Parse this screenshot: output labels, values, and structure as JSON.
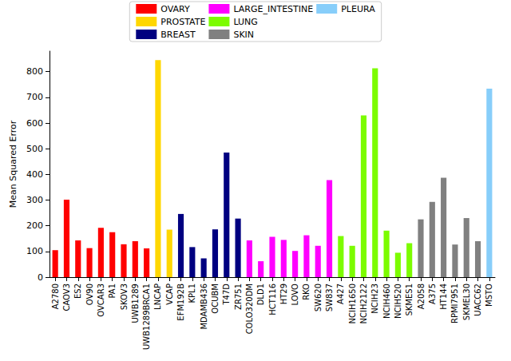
{
  "chart_data": {
    "type": "bar",
    "y_label": "Mean Squared Error",
    "categories": [
      "A2780",
      "CAOV3",
      "ES2",
      "OV90",
      "OVCAR3",
      "PA1",
      "SKOV3",
      "UWB1289",
      "UWB1289BRCA1",
      "LNCAP",
      "VCAP",
      "EFM192B",
      "KPL1",
      "MDAMB436",
      "OCUBM",
      "T47D",
      "ZR751",
      "COLO320DM",
      "DLD1",
      "HCT116",
      "HT29",
      "LOVO",
      "RKO",
      "SW620",
      "SW837",
      "A427",
      "NCIH1650",
      "NCIH2122",
      "NCIH23",
      "NCIH460",
      "NCIH520",
      "SKMES1",
      "A2058",
      "A375",
      "HT144",
      "RPMI7951",
      "SKMEL30",
      "UACC62",
      "MSTO"
    ],
    "series": [
      {
        "name": "OVARY",
        "color": "#ff0000",
        "values": [
          105,
          302,
          143,
          113,
          192,
          175,
          128,
          140,
          112,
          null,
          null,
          null,
          null,
          null,
          null,
          null,
          null,
          null,
          null,
          null,
          null,
          null,
          null,
          null,
          null,
          null,
          null,
          null,
          null,
          null,
          null,
          null,
          null,
          null,
          null,
          null,
          null,
          null,
          null
        ]
      },
      {
        "name": "PROSTATE",
        "color": "#ffd700",
        "values": [
          null,
          null,
          null,
          null,
          null,
          null,
          null,
          null,
          null,
          845,
          185,
          null,
          null,
          null,
          null,
          null,
          null,
          null,
          null,
          null,
          null,
          null,
          null,
          null,
          null,
          null,
          null,
          null,
          null,
          null,
          null,
          null,
          null,
          null,
          null,
          null,
          null,
          null,
          null
        ]
      },
      {
        "name": "BREAST",
        "color": "#000080",
        "values": [
          null,
          null,
          null,
          null,
          null,
          null,
          null,
          null,
          null,
          null,
          null,
          246,
          117,
          73,
          186,
          485,
          228,
          null,
          null,
          null,
          null,
          null,
          null,
          null,
          null,
          null,
          null,
          null,
          null,
          null,
          null,
          null,
          null,
          null,
          null,
          null,
          null,
          null,
          null
        ]
      },
      {
        "name": "LARGE_INTESTINE",
        "color": "#ff00ff",
        "values": [
          null,
          null,
          null,
          null,
          null,
          null,
          null,
          null,
          null,
          null,
          null,
          null,
          null,
          null,
          null,
          null,
          null,
          143,
          62,
          157,
          145,
          102,
          163,
          122,
          378,
          null,
          null,
          null,
          null,
          null,
          null,
          null,
          null,
          null,
          null,
          null,
          null,
          null,
          null
        ]
      },
      {
        "name": "LUNG",
        "color": "#7cfc00",
        "values": [
          null,
          null,
          null,
          null,
          null,
          null,
          null,
          null,
          null,
          null,
          null,
          null,
          null,
          null,
          null,
          null,
          null,
          null,
          null,
          null,
          null,
          null,
          null,
          null,
          null,
          160,
          122,
          630,
          813,
          181,
          95,
          132,
          null,
          null,
          null,
          null,
          null,
          null,
          null
        ]
      },
      {
        "name": "SKIN",
        "color": "#808080",
        "values": [
          null,
          null,
          null,
          null,
          null,
          null,
          null,
          null,
          null,
          null,
          null,
          null,
          null,
          null,
          null,
          null,
          null,
          null,
          null,
          null,
          null,
          null,
          null,
          null,
          null,
          null,
          null,
          null,
          null,
          null,
          null,
          null,
          225,
          293,
          387,
          127,
          230,
          140,
          null
        ]
      },
      {
        "name": "PLEURA",
        "color": "#87cefa",
        "values": [
          null,
          null,
          null,
          null,
          null,
          null,
          null,
          null,
          null,
          null,
          null,
          null,
          null,
          null,
          null,
          null,
          null,
          null,
          null,
          null,
          null,
          null,
          null,
          null,
          null,
          null,
          null,
          null,
          null,
          null,
          null,
          null,
          null,
          null,
          null,
          null,
          null,
          null,
          734
        ]
      }
    ],
    "ylim": [
      0,
      880
    ],
    "yticks": [
      0,
      100,
      200,
      300,
      400,
      500,
      600,
      700,
      800
    ],
    "grid": false,
    "legend": "top"
  }
}
